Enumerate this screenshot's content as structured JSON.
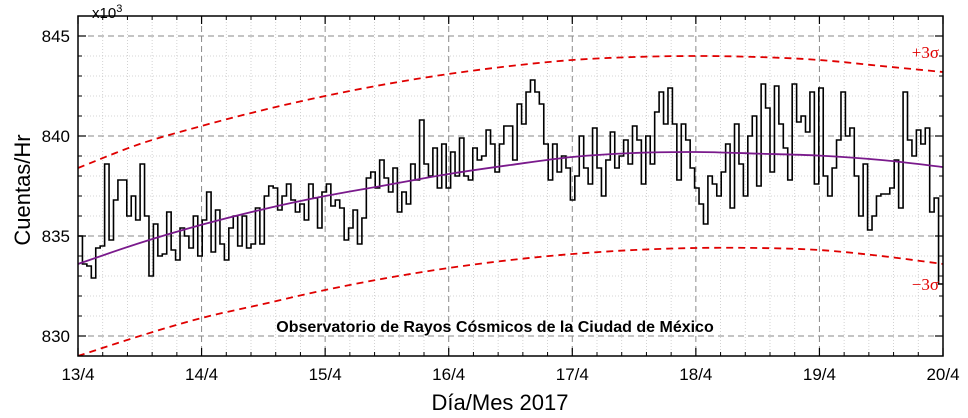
{
  "chart_data": {
    "type": "line",
    "title": "",
    "annotation": "Observatorio de Rayos Cósmicos de la Ciudad de México",
    "xlabel": "Día/Mes 2017",
    "ylabel": "Cuentas/Hr",
    "y_multiplier": "x10",
    "y_multiplier_exp": "3",
    "xlim": [
      "13/4",
      "20/4"
    ],
    "ylim": [
      829,
      846
    ],
    "x_ticks": [
      "13/4",
      "14/4",
      "15/4",
      "16/4",
      "17/4",
      "18/4",
      "19/4",
      "20/4"
    ],
    "y_ticks": [
      830,
      835,
      840,
      845
    ],
    "grid": true,
    "series": [
      {
        "name": "",
        "style": "step",
        "color": "#000000",
        "values": [
          835.0,
          833.6,
          833.5,
          832.9,
          834.4,
          834.5,
          838.6,
          834.8,
          836.8,
          837.8,
          837.8,
          836.0,
          837.0,
          835.8,
          838.6,
          836.0,
          833.0,
          835.6,
          834.0,
          834.1,
          836.2,
          834.3,
          833.8,
          835.4,
          835.0,
          834.4,
          836.0,
          834.0,
          835.8,
          837.2,
          834.2,
          836.3,
          834.6,
          833.8,
          835.4,
          836.0,
          834.5,
          836.0,
          834.4,
          834.6,
          836.4,
          834.6,
          837.0,
          837.5,
          837.4,
          836.3,
          837.0,
          837.6,
          836.8,
          836.2,
          836.6,
          835.8,
          837.6,
          836.9,
          835.4,
          837.2,
          837.6,
          836.5,
          836.8,
          836.4,
          834.8,
          835.4,
          836.3,
          834.6,
          835.9,
          837.9,
          838.2,
          837.4,
          838.8,
          837.9,
          837.2,
          838.4,
          836.2,
          837.2,
          836.6,
          838.6,
          837.8,
          840.8,
          838.6,
          838.0,
          839.4,
          837.4,
          839.6,
          837.4,
          839.2,
          838.0,
          839.9,
          838.0,
          837.8,
          839.4,
          838.8,
          839.0,
          840.3,
          839.6,
          838.2,
          839.6,
          840.5,
          840.5,
          838.8,
          841.6,
          840.6,
          842.2,
          842.8,
          842.2,
          841.6,
          839.6,
          837.8,
          839.6,
          838.2,
          839.0,
          838.4,
          836.8,
          838.0,
          840.0,
          838.4,
          837.6,
          840.4,
          838.4,
          837.0,
          838.8,
          840.2,
          838.4,
          839.0,
          839.8,
          838.6,
          840.5,
          839.8,
          837.6,
          840.0,
          838.6,
          841.2,
          842.2,
          840.6,
          842.4,
          840.6,
          837.8,
          840.6,
          839.8,
          838.4,
          837.4,
          836.6,
          835.6,
          838.0,
          837.6,
          837.0,
          838.2,
          839.6,
          836.4,
          840.6,
          838.6,
          837.0,
          840.0,
          841.0,
          837.5,
          842.6,
          841.4,
          838.2,
          842.5,
          840.6,
          839.4,
          837.8,
          842.6,
          840.7,
          841.0,
          840.2,
          842.2,
          837.6,
          842.4,
          838.0,
          837.0,
          838.4,
          839.8,
          842.2,
          840.0,
          840.4,
          838.0,
          836.0,
          838.6,
          835.3,
          836.0,
          837.0,
          837.1,
          837.1,
          837.4,
          838.8,
          836.4,
          842.2,
          839.8,
          839.0,
          840.3,
          839.6,
          840.4,
          836.2,
          836.9,
          832.6
        ]
      },
      {
        "name": "",
        "style": "line",
        "color": "#7a1a8c",
        "x": [
          0,
          0.5,
          1,
          1.5,
          2,
          2.5,
          3,
          3.5,
          4,
          4.5,
          5,
          5.5,
          6,
          6.5,
          7
        ],
        "values": [
          833.6,
          834.65,
          835.56,
          836.34,
          837.0,
          837.55,
          838.1,
          838.55,
          838.95,
          839.15,
          839.2,
          839.12,
          839.02,
          838.8,
          838.45
        ]
      },
      {
        "name": "+3σ",
        "style": "dashed",
        "color": "#e00000",
        "x": [
          0,
          0.5,
          1,
          1.5,
          2,
          2.5,
          3,
          3.5,
          4,
          4.5,
          5,
          5.5,
          6,
          6.5,
          7
        ],
        "values": [
          838.4,
          839.6,
          840.5,
          841.3,
          842.0,
          842.6,
          843.1,
          843.5,
          843.8,
          843.95,
          844.0,
          843.95,
          843.8,
          843.5,
          843.2
        ]
      },
      {
        "name": "−3σ",
        "style": "dashed",
        "color": "#e00000",
        "x": [
          0,
          0.5,
          1,
          1.5,
          2,
          2.5,
          3,
          3.5,
          4,
          4.5,
          5,
          5.5,
          6,
          6.5,
          7
        ],
        "values": [
          829.0,
          830.0,
          830.9,
          831.6,
          832.3,
          832.9,
          833.4,
          833.8,
          834.1,
          834.3,
          834.4,
          834.4,
          834.3,
          834.0,
          833.6
        ]
      }
    ]
  }
}
